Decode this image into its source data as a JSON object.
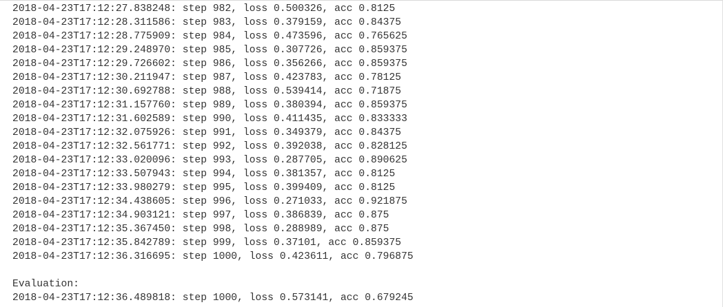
{
  "log": {
    "lines": [
      "2018-04-23T17:12:27.838248: step 982, loss 0.500326, acc 0.8125",
      "2018-04-23T17:12:28.311586: step 983, loss 0.379159, acc 0.84375",
      "2018-04-23T17:12:28.775909: step 984, loss 0.473596, acc 0.765625",
      "2018-04-23T17:12:29.248970: step 985, loss 0.307726, acc 0.859375",
      "2018-04-23T17:12:29.726602: step 986, loss 0.356266, acc 0.859375",
      "2018-04-23T17:12:30.211947: step 987, loss 0.423783, acc 0.78125",
      "2018-04-23T17:12:30.692788: step 988, loss 0.539414, acc 0.71875",
      "2018-04-23T17:12:31.157760: step 989, loss 0.380394, acc 0.859375",
      "2018-04-23T17:12:31.602589: step 990, loss 0.411435, acc 0.833333",
      "2018-04-23T17:12:32.075926: step 991, loss 0.349379, acc 0.84375",
      "2018-04-23T17:12:32.561771: step 992, loss 0.392038, acc 0.828125",
      "2018-04-23T17:12:33.020096: step 993, loss 0.287705, acc 0.890625",
      "2018-04-23T17:12:33.507943: step 994, loss 0.381357, acc 0.8125",
      "2018-04-23T17:12:33.980279: step 995, loss 0.399409, acc 0.8125",
      "2018-04-23T17:12:34.438605: step 996, loss 0.271033, acc 0.921875",
      "2018-04-23T17:12:34.903121: step 997, loss 0.386839, acc 0.875",
      "2018-04-23T17:12:35.367450: step 998, loss 0.288989, acc 0.875",
      "2018-04-23T17:12:35.842789: step 999, loss 0.37101, acc 0.859375",
      "2018-04-23T17:12:36.316695: step 1000, loss 0.423611, acc 0.796875"
    ]
  },
  "evaluation": {
    "heading": "Evaluation:",
    "line": "2018-04-23T17:12:36.489818: step 1000, loss 0.573141, acc 0.679245"
  }
}
